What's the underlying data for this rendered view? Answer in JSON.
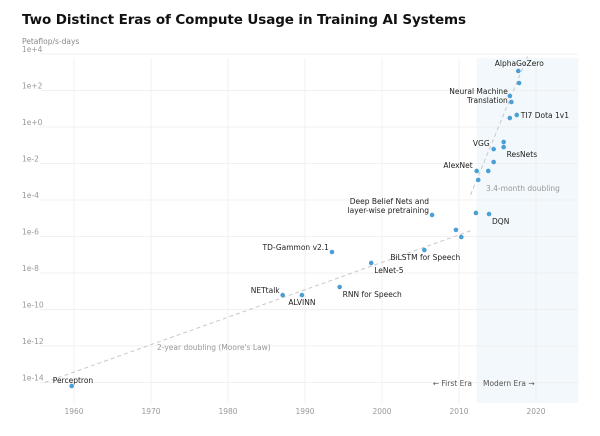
{
  "chart_data": {
    "type": "scatter",
    "title": "Two Distinct Eras of Compute Usage in Training AI Systems",
    "ylabel": "Petaflop/s-days",
    "xlabel": "",
    "yscale": "log10",
    "xlim": [
      1955,
      2026
    ],
    "ylim_log10": [
      -14.4,
      4.3
    ],
    "x_ticks": [
      1960,
      1970,
      1980,
      1990,
      2000,
      2010,
      2020
    ],
    "y_ticks": [
      {
        "log10": 4,
        "label": "1e+4"
      },
      {
        "log10": 2,
        "label": "1e+2"
      },
      {
        "log10": 0,
        "label": "1e+0"
      },
      {
        "log10": -2,
        "label": "1e-2"
      },
      {
        "log10": -4,
        "label": "1e-4"
      },
      {
        "log10": -6,
        "label": "1e-6"
      },
      {
        "log10": -8,
        "label": "1e-8"
      },
      {
        "log10": -10,
        "label": "1e-10"
      },
      {
        "log10": -12,
        "label": "1e-12"
      },
      {
        "log10": -14,
        "label": "1e-14"
      }
    ],
    "grid": true,
    "point_color": "#4a9fd4",
    "points": [
      {
        "year": 1959.7,
        "log10": -14.19,
        "label": "Perceptron",
        "anchor": "above-right"
      },
      {
        "year": 1987.1,
        "log10": -9.21,
        "label": "NETtalk",
        "anchor": "above-left"
      },
      {
        "year": 1989.6,
        "log10": -9.21,
        "label": "ALVINN",
        "anchor": "below"
      },
      {
        "year": 1994.5,
        "log10": -8.77,
        "label": "RNN for Speech",
        "anchor": "below-right"
      },
      {
        "year": 1993.5,
        "log10": -6.85,
        "label": "TD-Gammon v2.1",
        "anchor": "above-left"
      },
      {
        "year": 1998.6,
        "log10": -7.45,
        "label": "LeNet-5",
        "anchor": "below-right"
      },
      {
        "year": 2005.5,
        "log10": -6.74,
        "label": "BiLSTM for Speech",
        "anchor": "below"
      },
      {
        "year": 2006.5,
        "log10": -4.82,
        "label": "Deep Belief Nets and layer-wise pretraining",
        "anchor": "above-left"
      },
      {
        "year": 2009.6,
        "log10": -5.64,
        "label": ""
      },
      {
        "year": 2010.3,
        "log10": -6.03,
        "label": ""
      },
      {
        "year": 2012.2,
        "log10": -4.71,
        "label": ""
      },
      {
        "year": 2013.9,
        "log10": -4.77,
        "label": "DQN",
        "anchor": "below-right"
      },
      {
        "year": 2012.3,
        "log10": -2.41,
        "label": "AlexNet",
        "anchor": "left"
      },
      {
        "year": 2012.5,
        "log10": -2.9,
        "label": ""
      },
      {
        "year": 2013.8,
        "log10": -2.41,
        "label": ""
      },
      {
        "year": 2014.5,
        "log10": -1.92,
        "label": ""
      },
      {
        "year": 2014.5,
        "log10": -1.21,
        "label": "VGG",
        "anchor": "left"
      },
      {
        "year": 2015.8,
        "log10": -1.1,
        "label": "ResNets",
        "anchor": "below-right"
      },
      {
        "year": 2015.8,
        "log10": -0.82,
        "label": ""
      },
      {
        "year": 2016.6,
        "log10": 0.49,
        "label": ""
      },
      {
        "year": 2017.5,
        "log10": 0.66,
        "label": "TI7 Dota 1v1",
        "anchor": "right"
      },
      {
        "year": 2016.6,
        "log10": 1.7,
        "label": "Neural Machine Translation",
        "anchor": "left"
      },
      {
        "year": 2016.8,
        "log10": 1.37,
        "label": ""
      },
      {
        "year": 2017.8,
        "log10": 2.41,
        "label": ""
      },
      {
        "year": 2017.7,
        "log10": 3.07,
        "label": "AlphaGoZero",
        "anchor": "above"
      }
    ],
    "trend_lines": [
      {
        "name": "2-year doubling (Moore's Law)",
        "from": {
          "year": 1956.2,
          "log10": -14.0
        },
        "to": {
          "year": 2011.6,
          "log10": -5.67
        }
      },
      {
        "name": "3.4-month doubling",
        "from": {
          "year": 2011.5,
          "log10": -3.72
        },
        "to": {
          "year": 2018.9,
          "log10": 3.87
        }
      }
    ],
    "eras": [
      {
        "name": "First Era",
        "label": "← First Era"
      },
      {
        "name": "Modern Era",
        "label": "Modern Era →",
        "start_year": 2012.3,
        "end_year": 2025.5,
        "shade_color": "#f2f8fb"
      }
    ]
  }
}
